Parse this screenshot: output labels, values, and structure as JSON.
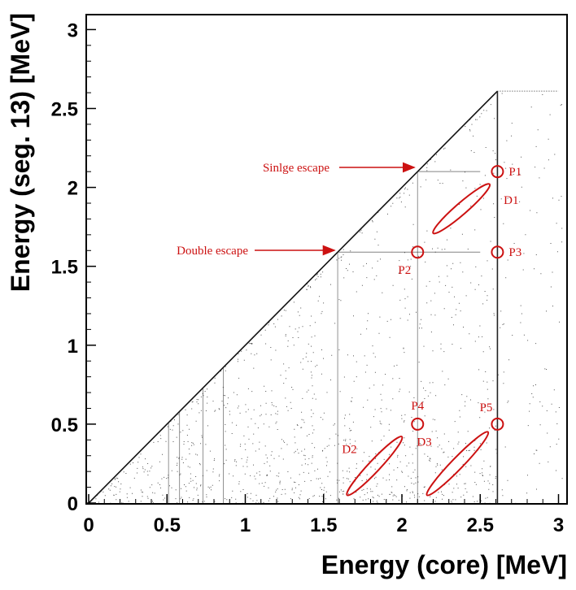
{
  "chart_data": {
    "type": "heatmap",
    "title": "",
    "xlabel": "Energy (core) [MeV]",
    "ylabel": "Energy (seg. 13) [MeV]",
    "xlim": [
      0,
      3.1
    ],
    "ylim": [
      0,
      3.1
    ],
    "x_ticks": [
      0,
      0.5,
      1,
      1.5,
      2,
      2.5,
      3
    ],
    "x_tick_labels": [
      "0",
      "0.5",
      "1",
      "1.5",
      "2",
      "2.5",
      "3"
    ],
    "y_ticks": [
      0,
      0.5,
      1,
      1.5,
      2,
      2.5,
      3
    ],
    "y_tick_labels": [
      "0",
      "0.5",
      "1",
      "1.5",
      "2",
      "2.5",
      "3"
    ],
    "diagonal_edge": {
      "from": [
        0,
        0
      ],
      "to": [
        2.61,
        2.61
      ]
    },
    "vertical_lines_core_energy": [
      0.51,
      0.58,
      0.73,
      0.86,
      1.59,
      2.1,
      2.61
    ],
    "horizontal_lines_seg_energy": [
      1.59,
      2.1
    ],
    "markers": [
      {
        "label": "P1",
        "x": 2.61,
        "y": 2.1
      },
      {
        "label": "P2",
        "x": 2.1,
        "y": 1.59
      },
      {
        "label": "P3",
        "x": 2.61,
        "y": 1.59
      },
      {
        "label": "P4",
        "x": 2.1,
        "y": 0.5
      },
      {
        "label": "P5",
        "x": 2.61,
        "y": 0.5
      }
    ],
    "regions": [
      {
        "label": "D1",
        "from": [
          2.2,
          1.71
        ],
        "to": [
          2.56,
          2.02
        ]
      },
      {
        "label": "D2",
        "from": [
          1.65,
          0.05
        ],
        "to": [
          2.0,
          0.42
        ]
      },
      {
        "label": "D3",
        "from": [
          2.16,
          0.05
        ],
        "to": [
          2.55,
          0.45
        ]
      }
    ],
    "annotations": [
      {
        "text": "Sinlge escape",
        "arrow_to": [
          2.1,
          2.1
        ]
      },
      {
        "text": "Double escape",
        "arrow_to": [
          1.59,
          1.59
        ]
      }
    ],
    "colors": {
      "points": "#1a1a1a",
      "annotation": "#cc1111",
      "background": "#ffffff"
    }
  }
}
